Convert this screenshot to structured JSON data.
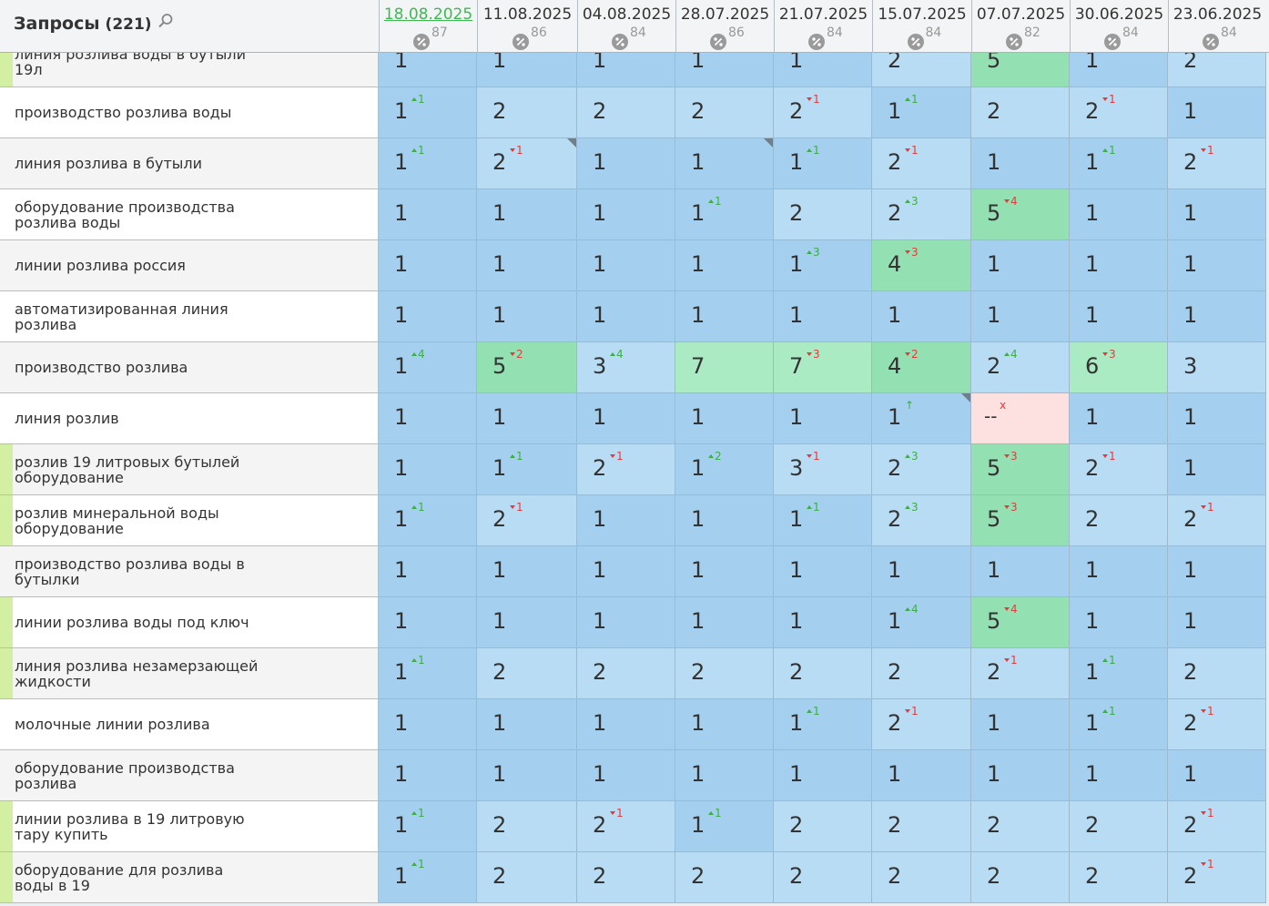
{
  "header": {
    "title": "Запросы",
    "count": "(221)",
    "dates": [
      {
        "date": "18.08.2025",
        "score": 87,
        "active": true
      },
      {
        "date": "11.08.2025",
        "score": 86
      },
      {
        "date": "04.08.2025",
        "score": 84
      },
      {
        "date": "28.07.2025",
        "score": 86
      },
      {
        "date": "21.07.2025",
        "score": 84
      },
      {
        "date": "15.07.2025",
        "score": 84
      },
      {
        "date": "07.07.2025",
        "score": 82
      },
      {
        "date": "30.06.2025",
        "score": 84
      },
      {
        "date": "23.06.2025",
        "score": 84
      }
    ]
  },
  "rows": [
    {
      "query": "линия розлива воды в бутыли 19л",
      "marked": true,
      "cells": [
        {
          "v": 1
        },
        {
          "v": 1
        },
        {
          "v": 1
        },
        {
          "v": 1
        },
        {
          "v": 1
        },
        {
          "v": 2
        },
        {
          "v": 5
        },
        {
          "v": 1
        },
        {
          "v": 2
        }
      ]
    },
    {
      "query": "производство розлива воды",
      "cells": [
        {
          "v": 1,
          "d": 1,
          "dir": "up"
        },
        {
          "v": 2
        },
        {
          "v": 2
        },
        {
          "v": 2
        },
        {
          "v": 2,
          "d": 1,
          "dir": "down"
        },
        {
          "v": 1,
          "d": 1,
          "dir": "up"
        },
        {
          "v": 2
        },
        {
          "v": 2,
          "d": 1,
          "dir": "down"
        },
        {
          "v": 1
        }
      ]
    },
    {
      "query": "линия розлива в бутыли",
      "cells": [
        {
          "v": 1,
          "d": 1,
          "dir": "up"
        },
        {
          "v": 2,
          "d": 1,
          "dir": "down",
          "note": true
        },
        {
          "v": 1
        },
        {
          "v": 1,
          "note": true
        },
        {
          "v": 1,
          "d": 1,
          "dir": "up"
        },
        {
          "v": 2,
          "d": 1,
          "dir": "down"
        },
        {
          "v": 1
        },
        {
          "v": 1,
          "d": 1,
          "dir": "up"
        },
        {
          "v": 2,
          "d": 1,
          "dir": "down"
        }
      ]
    },
    {
      "query": "оборудование производства розлива воды",
      "cells": [
        {
          "v": 1
        },
        {
          "v": 1
        },
        {
          "v": 1
        },
        {
          "v": 1,
          "d": 1,
          "dir": "up"
        },
        {
          "v": 2
        },
        {
          "v": 2,
          "d": 3,
          "dir": "up"
        },
        {
          "v": 5,
          "d": 4,
          "dir": "down"
        },
        {
          "v": 1
        },
        {
          "v": 1
        }
      ]
    },
    {
      "query": "линии розлива россия",
      "cells": [
        {
          "v": 1
        },
        {
          "v": 1
        },
        {
          "v": 1
        },
        {
          "v": 1
        },
        {
          "v": 1,
          "d": 3,
          "dir": "up"
        },
        {
          "v": 4,
          "d": 3,
          "dir": "down"
        },
        {
          "v": 1
        },
        {
          "v": 1
        },
        {
          "v": 1
        }
      ]
    },
    {
      "query": "автоматизированная линия розлива",
      "cells": [
        {
          "v": 1
        },
        {
          "v": 1
        },
        {
          "v": 1
        },
        {
          "v": 1
        },
        {
          "v": 1
        },
        {
          "v": 1
        },
        {
          "v": 1
        },
        {
          "v": 1
        },
        {
          "v": 1
        }
      ]
    },
    {
      "query": "производство розлива",
      "cells": [
        {
          "v": 1,
          "d": 4,
          "dir": "up"
        },
        {
          "v": 5,
          "d": 2,
          "dir": "down"
        },
        {
          "v": 3,
          "d": 4,
          "dir": "up"
        },
        {
          "v": 7
        },
        {
          "v": 7,
          "d": 3,
          "dir": "down"
        },
        {
          "v": 4,
          "d": 2,
          "dir": "down"
        },
        {
          "v": 2,
          "d": 4,
          "dir": "up"
        },
        {
          "v": 6,
          "d": 3,
          "dir": "down"
        },
        {
          "v": 3
        }
      ]
    },
    {
      "query": "линия розлив",
      "cells": [
        {
          "v": 1
        },
        {
          "v": 1
        },
        {
          "v": 1
        },
        {
          "v": 1
        },
        {
          "v": 1
        },
        {
          "v": 1,
          "d": "↑",
          "dir": "up",
          "note": true
        },
        {
          "v": "--",
          "d": "x",
          "dir": "down"
        },
        {
          "v": 1
        },
        {
          "v": 1
        }
      ]
    },
    {
      "query": "розлив 19 литровых бутылей оборудование",
      "marked": true,
      "cells": [
        {
          "v": 1
        },
        {
          "v": 1,
          "d": 1,
          "dir": "up"
        },
        {
          "v": 2,
          "d": 1,
          "dir": "down"
        },
        {
          "v": 1,
          "d": 2,
          "dir": "up"
        },
        {
          "v": 3,
          "d": 1,
          "dir": "down"
        },
        {
          "v": 2,
          "d": 3,
          "dir": "up"
        },
        {
          "v": 5,
          "d": 3,
          "dir": "down"
        },
        {
          "v": 2,
          "d": 1,
          "dir": "down"
        },
        {
          "v": 1
        }
      ]
    },
    {
      "query": "розлив минеральной воды оборудование",
      "marked": true,
      "cells": [
        {
          "v": 1,
          "d": 1,
          "dir": "up"
        },
        {
          "v": 2,
          "d": 1,
          "dir": "down"
        },
        {
          "v": 1
        },
        {
          "v": 1
        },
        {
          "v": 1,
          "d": 1,
          "dir": "up"
        },
        {
          "v": 2,
          "d": 3,
          "dir": "up"
        },
        {
          "v": 5,
          "d": 3,
          "dir": "down"
        },
        {
          "v": 2
        },
        {
          "v": 2,
          "d": 1,
          "dir": "down"
        }
      ]
    },
    {
      "query": "производство розлива воды в бутылки",
      "cells": [
        {
          "v": 1
        },
        {
          "v": 1
        },
        {
          "v": 1
        },
        {
          "v": 1
        },
        {
          "v": 1
        },
        {
          "v": 1
        },
        {
          "v": 1
        },
        {
          "v": 1
        },
        {
          "v": 1
        }
      ]
    },
    {
      "query": "линии розлива воды под ключ",
      "marked": true,
      "cells": [
        {
          "v": 1
        },
        {
          "v": 1
        },
        {
          "v": 1
        },
        {
          "v": 1
        },
        {
          "v": 1
        },
        {
          "v": 1,
          "d": 4,
          "dir": "up"
        },
        {
          "v": 5,
          "d": 4,
          "dir": "down"
        },
        {
          "v": 1
        },
        {
          "v": 1
        }
      ]
    },
    {
      "query": "линия розлива незамерзающей жидкости",
      "marked": true,
      "cells": [
        {
          "v": 1,
          "d": 1,
          "dir": "up"
        },
        {
          "v": 2
        },
        {
          "v": 2
        },
        {
          "v": 2
        },
        {
          "v": 2
        },
        {
          "v": 2
        },
        {
          "v": 2,
          "d": 1,
          "dir": "down"
        },
        {
          "v": 1,
          "d": 1,
          "dir": "up"
        },
        {
          "v": 2
        }
      ]
    },
    {
      "query": "молочные линии розлива",
      "cells": [
        {
          "v": 1
        },
        {
          "v": 1
        },
        {
          "v": 1
        },
        {
          "v": 1
        },
        {
          "v": 1,
          "d": 1,
          "dir": "up"
        },
        {
          "v": 2,
          "d": 1,
          "dir": "down"
        },
        {
          "v": 1
        },
        {
          "v": 1,
          "d": 1,
          "dir": "up"
        },
        {
          "v": 2,
          "d": 1,
          "dir": "down"
        }
      ]
    },
    {
      "query": "оборудование производства розлива",
      "cells": [
        {
          "v": 1
        },
        {
          "v": 1
        },
        {
          "v": 1
        },
        {
          "v": 1
        },
        {
          "v": 1
        },
        {
          "v": 1
        },
        {
          "v": 1
        },
        {
          "v": 1
        },
        {
          "v": 1
        }
      ]
    },
    {
      "query": "линии розлива в 19 литровую тару купить",
      "marked": true,
      "cells": [
        {
          "v": 1,
          "d": 1,
          "dir": "up"
        },
        {
          "v": 2
        },
        {
          "v": 2,
          "d": 1,
          "dir": "down"
        },
        {
          "v": 1,
          "d": 1,
          "dir": "up"
        },
        {
          "v": 2
        },
        {
          "v": 2
        },
        {
          "v": 2
        },
        {
          "v": 2
        },
        {
          "v": 2,
          "d": 1,
          "dir": "down"
        }
      ]
    },
    {
      "query": "оборудование для розлива воды в 19",
      "marked": true,
      "cells": [
        {
          "v": 1,
          "d": 1,
          "dir": "up"
        },
        {
          "v": 2
        },
        {
          "v": 2
        },
        {
          "v": 2
        },
        {
          "v": 2
        },
        {
          "v": 2
        },
        {
          "v": 2
        },
        {
          "v": 2
        },
        {
          "v": 2,
          "d": 1,
          "dir": "down"
        }
      ]
    }
  ]
}
